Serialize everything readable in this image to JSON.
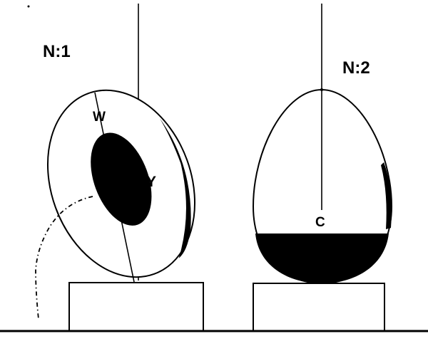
{
  "figures": [
    {
      "label": "N:1",
      "points": {
        "top": "W",
        "side": "Y"
      }
    },
    {
      "label": "N:2",
      "points": {
        "center": "C"
      }
    }
  ],
  "colors": {
    "ink": "#000000",
    "paper": "#ffffff"
  }
}
